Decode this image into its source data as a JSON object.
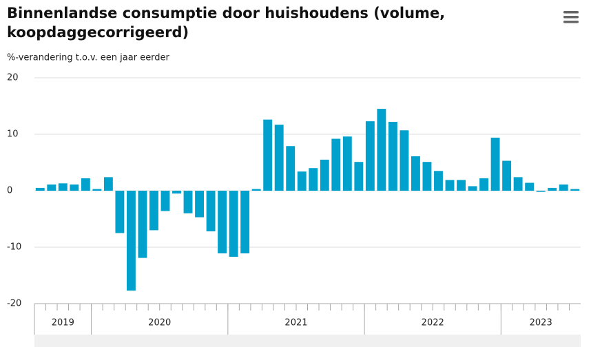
{
  "chart_data": {
    "type": "bar",
    "title_lines": [
      "Binnenlandse consumptie door huishoudens (volume,",
      "koopdaggecorrigeerd)"
    ],
    "subtitle": "%-verandering t.o.v. een jaar eerder",
    "categories": [
      null,
      null,
      null,
      null,
      null,
      null,
      null,
      null,
      null,
      null,
      null,
      null,
      null,
      null,
      null,
      null,
      null,
      null,
      null,
      null,
      null,
      null,
      null,
      null,
      null,
      null,
      null,
      null,
      null,
      null,
      null,
      null,
      null,
      null,
      null,
      null,
      null,
      null,
      null,
      null,
      null,
      null,
      null,
      null,
      null,
      null,
      null,
      null
    ],
    "values": [
      0.5,
      1.1,
      1.3,
      1.1,
      2.2,
      0.3,
      2.4,
      -7.5,
      -17.7,
      -11.9,
      -7.0,
      -3.6,
      -0.5,
      -4.0,
      -4.7,
      -7.2,
      -11.1,
      -11.7,
      -11.1,
      0.3,
      12.6,
      11.7,
      7.9,
      3.4,
      4.0,
      5.5,
      9.2,
      9.6,
      5.1,
      12.3,
      14.5,
      12.2,
      10.7,
      6.1,
      5.1,
      3.5,
      1.9,
      1.9,
      0.8,
      2.2,
      9.4,
      5.3,
      2.4,
      1.4,
      -0.2,
      0.5,
      1.1,
      0.3
    ],
    "year_groups": [
      "2019",
      "2020",
      "2021",
      "2022",
      "2023"
    ],
    "color": "#00a1cd",
    "ylim": [
      -20,
      20
    ],
    "yticks": [
      -20,
      -10,
      0,
      10,
      20
    ],
    "grid": true
  }
}
